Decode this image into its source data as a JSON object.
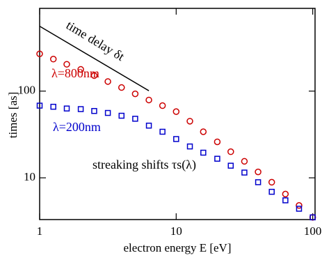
{
  "chart_data": {
    "type": "scatter",
    "xlabel": "electron energy E [eV]",
    "ylabel": "times [as]",
    "xscale": "log",
    "yscale": "log",
    "xlim": [
      1,
      104
    ],
    "ylim": [
      3.3,
      900
    ],
    "xticks": [
      1,
      10,
      100
    ],
    "yticks": [
      10,
      100
    ],
    "x": [
      1,
      1.26,
      1.58,
      2,
      2.51,
      3.16,
      3.98,
      5.01,
      6.31,
      7.94,
      10,
      12.6,
      15.8,
      20,
      25.1,
      31.6,
      39.8,
      50.1,
      63.1,
      79.4,
      100
    ],
    "series": [
      {
        "name": "λ=800nm",
        "color": "#cc0000",
        "marker": "circle",
        "values": [
          269,
          234,
          204,
          178,
          151,
          129,
          110,
          93,
          79,
          68,
          58,
          45,
          34,
          26,
          20,
          15.5,
          11.7,
          8.9,
          6.5,
          4.8,
          3.5
        ]
      },
      {
        "name": "λ=200nm",
        "color": "#0000cc",
        "marker": "square",
        "values": [
          68,
          66,
          63,
          62,
          59,
          56,
          52,
          48,
          40,
          34,
          28,
          23,
          19.5,
          16.6,
          13.8,
          11.5,
          8.9,
          6.9,
          5.5,
          4.4,
          3.5
        ]
      }
    ],
    "line": {
      "name": "time delay δt",
      "color": "#000000",
      "x": [
        1,
        6.31
      ],
      "values": [
        560,
        101
      ]
    },
    "annotations": [
      "streaking shifts τs(λ)"
    ]
  }
}
